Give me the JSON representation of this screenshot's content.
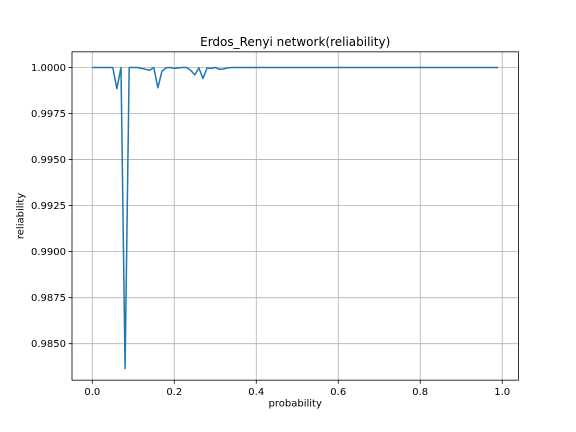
{
  "chart_data": {
    "type": "line",
    "title": "Erdos_Renyi network(reliability)",
    "xlabel": "probability",
    "ylabel": "reliability",
    "xlim": [
      -0.0495,
      1.0395
    ],
    "ylim": [
      0.98302,
      1.00085
    ],
    "xticks": [
      0.0,
      0.2,
      0.4,
      0.6,
      0.8,
      1.0
    ],
    "xtick_labels": [
      "0.0",
      "0.2",
      "0.4",
      "0.6",
      "0.8",
      "1.0"
    ],
    "yticks": [
      0.985,
      0.9875,
      0.99,
      0.9925,
      0.995,
      0.9975,
      1.0
    ],
    "ytick_labels": [
      "0.9850",
      "0.9875",
      "0.9900",
      "0.9925",
      "0.9950",
      "0.9975",
      "1.0000"
    ],
    "grid": true,
    "series": [
      {
        "color": "#1f77b4",
        "x": [
          0.0,
          0.01,
          0.02,
          0.03,
          0.04,
          0.05,
          0.06,
          0.07,
          0.08,
          0.09,
          0.1,
          0.11,
          0.12,
          0.13,
          0.14,
          0.15,
          0.16,
          0.17,
          0.18,
          0.19,
          0.2,
          0.21,
          0.22,
          0.23,
          0.24,
          0.25,
          0.26,
          0.27,
          0.28,
          0.29,
          0.3,
          0.31,
          0.32,
          0.33,
          0.34,
          0.35,
          0.36,
          0.37,
          0.38,
          0.39,
          0.4,
          0.45,
          0.5,
          0.55,
          0.6,
          0.65,
          0.7,
          0.75,
          0.8,
          0.85,
          0.9,
          0.95,
          0.99
        ],
        "y": [
          1.0,
          1.0,
          1.0,
          1.0,
          1.0,
          1.0,
          0.99885,
          1.0,
          0.98365,
          1.0,
          1.0,
          1.0,
          0.99995,
          0.9999,
          0.99985,
          1.0,
          0.9989,
          0.9998,
          0.99998,
          1.0,
          0.99995,
          0.99998,
          1.0,
          1.0,
          0.99985,
          0.9996,
          0.99998,
          0.9994,
          0.99998,
          0.99995,
          1.0,
          0.9999,
          0.99992,
          0.99998,
          1.0,
          1.0,
          1.0,
          1.0,
          1.0,
          1.0,
          1.0,
          1.0,
          1.0,
          1.0,
          1.0,
          1.0,
          1.0,
          1.0,
          1.0,
          1.0,
          1.0,
          1.0,
          1.0
        ]
      }
    ]
  }
}
